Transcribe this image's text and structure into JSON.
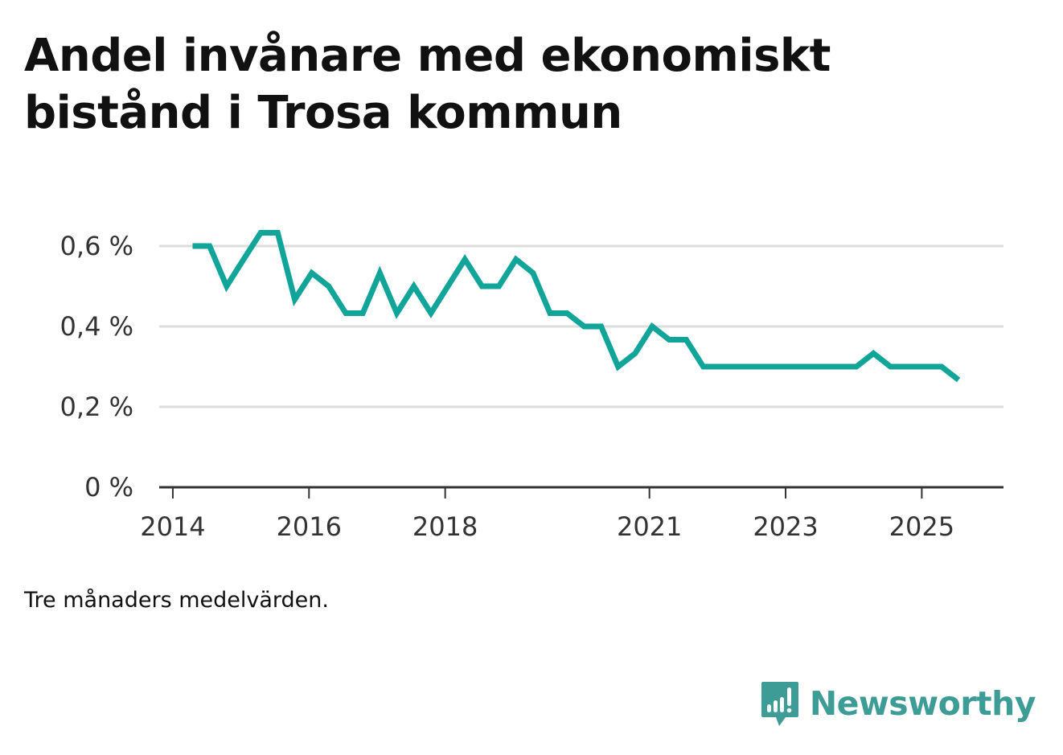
{
  "title": "Andel invånare med ekonomiskt bistånd i Trosa kommun",
  "note": "Tre månaders medelvärden.",
  "brand": {
    "name": "Newsworthy",
    "icon": "newsworthy-logo-icon",
    "color": "#3e9c96"
  },
  "colors": {
    "line": "#11a59a",
    "grid": "#dddddd",
    "axis": "#333333",
    "text": "#333333"
  },
  "chart_data": {
    "type": "line",
    "title": "Andel invånare med ekonomiskt bistånd i Trosa kommun",
    "xlabel": "",
    "ylabel": "",
    "ylim": [
      0,
      0.6
    ],
    "xlim": [
      2013.8,
      2026.2
    ],
    "grid": true,
    "y_ticks": [
      {
        "value": 0,
        "label": "0 %"
      },
      {
        "value": 0.2,
        "label": "0,2 %"
      },
      {
        "value": 0.4,
        "label": "0,4 %"
      },
      {
        "value": 0.6,
        "label": "0,6 %"
      }
    ],
    "x_ticks": [
      {
        "value": 2014,
        "label": "2014"
      },
      {
        "value": 2016,
        "label": "2016"
      },
      {
        "value": 2018,
        "label": "2018"
      },
      {
        "value": 2021,
        "label": "2021"
      },
      {
        "value": 2023,
        "label": "2023"
      },
      {
        "value": 2025,
        "label": "2025"
      }
    ],
    "series": [
      {
        "name": "Andel invånare med ekonomiskt bistånd",
        "x": [
          2014.29,
          2014.54,
          2014.79,
          2015.04,
          2015.29,
          2015.54,
          2015.79,
          2016.04,
          2016.29,
          2016.54,
          2016.79,
          2017.04,
          2017.29,
          2017.54,
          2017.79,
          2018.04,
          2018.29,
          2018.54,
          2018.79,
          2019.04,
          2019.29,
          2019.54,
          2019.79,
          2020.04,
          2020.29,
          2020.54,
          2020.79,
          2021.04,
          2021.29,
          2021.54,
          2021.79,
          2022.04,
          2022.29,
          2022.54,
          2022.79,
          2023.04,
          2023.29,
          2023.54,
          2023.79,
          2024.04,
          2024.29,
          2024.54,
          2024.79,
          2025.04,
          2025.29,
          2025.54
        ],
        "values": [
          0.6,
          0.6,
          0.5,
          0.567,
          0.633,
          0.633,
          0.467,
          0.533,
          0.5,
          0.433,
          0.433,
          0.533,
          0.433,
          0.5,
          0.433,
          0.5,
          0.567,
          0.5,
          0.5,
          0.567,
          0.533,
          0.433,
          0.433,
          0.4,
          0.4,
          0.3,
          0.333,
          0.4,
          0.367,
          0.367,
          0.3,
          0.3,
          0.3,
          0.3,
          0.3,
          0.3,
          0.3,
          0.3,
          0.3,
          0.3,
          0.333,
          0.3,
          0.3,
          0.3,
          0.3,
          0.267
        ]
      }
    ]
  }
}
